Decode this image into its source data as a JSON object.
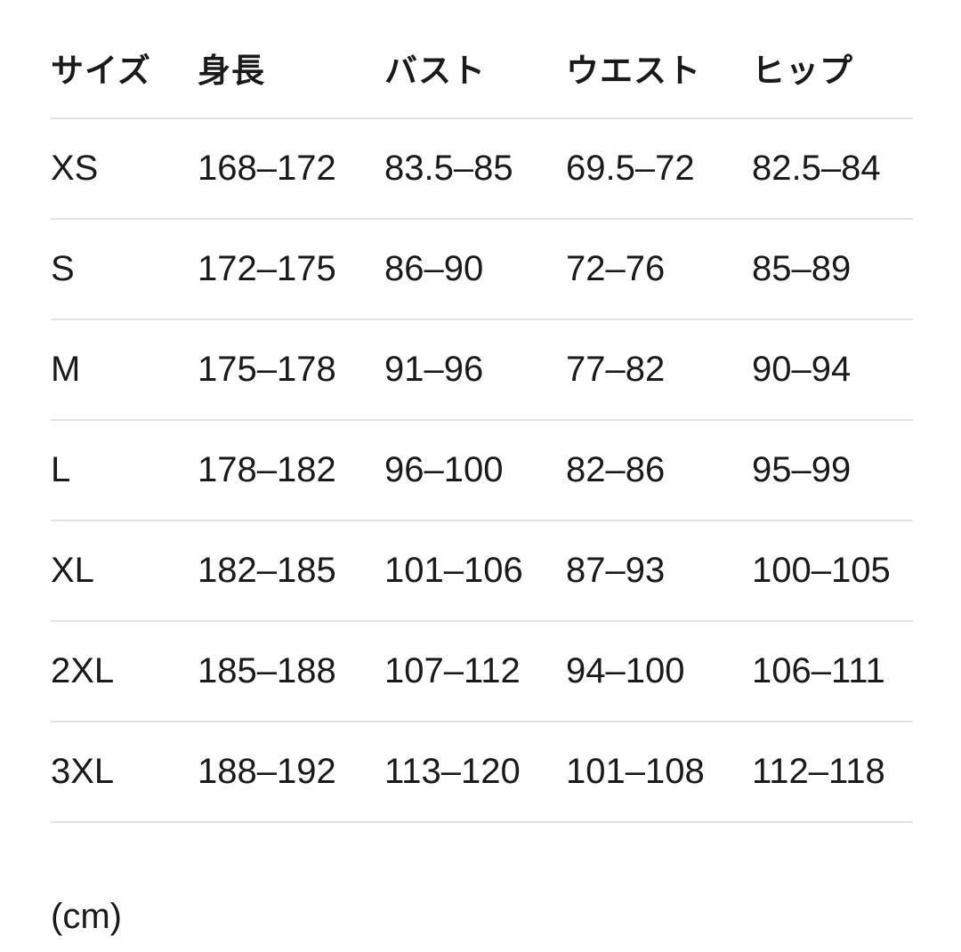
{
  "table": {
    "headers": [
      "サイズ",
      "身長",
      "バスト",
      "ウエスト",
      "ヒップ"
    ],
    "rows": [
      [
        "XS",
        "168–172",
        "83.5–85",
        "69.5–72",
        "82.5–84"
      ],
      [
        "S",
        "172–175",
        "86–90",
        "72–76",
        "85–89"
      ],
      [
        "M",
        "175–178",
        "91–96",
        "77–82",
        "90–94"
      ],
      [
        "L",
        "178–182",
        "96–100",
        "82–86",
        "95–99"
      ],
      [
        "XL",
        "182–185",
        "101–106",
        "87–93",
        "100–105"
      ],
      [
        "2XL",
        "185–188",
        "107–112",
        "94–100",
        "106–111"
      ],
      [
        "3XL",
        "188–192",
        "113–120",
        "101–108",
        "112–118"
      ]
    ]
  },
  "unit_note": "(cm)"
}
